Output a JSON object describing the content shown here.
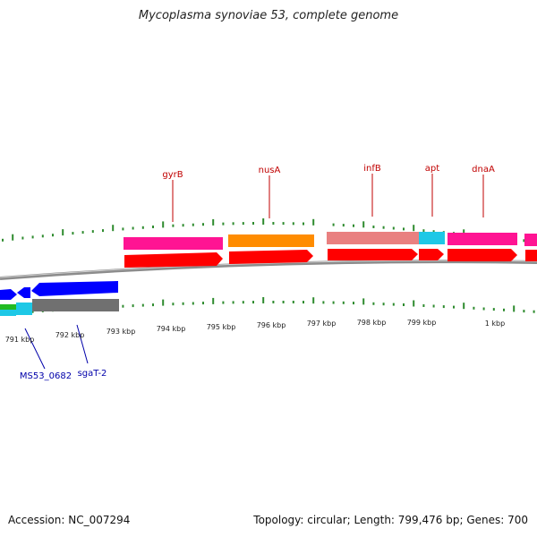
{
  "title": "Mycoplasma synoviae 53, complete genome",
  "footer": {
    "accession": "Accession: NC_007294",
    "summary": "Topology: circular; Length: 799,476 bp; Genes: 700"
  },
  "colors": {
    "gene_label": "#c00000",
    "locus_label": "#0000aa",
    "ticks": "#2e8b2e",
    "backbone": "#8c8c8c",
    "pink": "#ff1493",
    "orange": "#ff8c00",
    "salmon": "#e98080",
    "cyan": "#1ec8e6",
    "red": "#ff0000",
    "blue": "#0000ff",
    "gray": "#707070",
    "green": "#22bb22"
  },
  "position_labels": [
    "791 kbp",
    "792 kbp",
    "793 kbp",
    "794 kbp",
    "795 kbp",
    "796 kbp",
    "797 kbp",
    "798 kbp",
    "799 kbp",
    "1 kbp"
  ],
  "gene_labels": [
    "gyrB",
    "nusA",
    "infB",
    "apt",
    "dnaA"
  ],
  "locus_labels": [
    "MS53_0682",
    "sgaT-2"
  ]
}
